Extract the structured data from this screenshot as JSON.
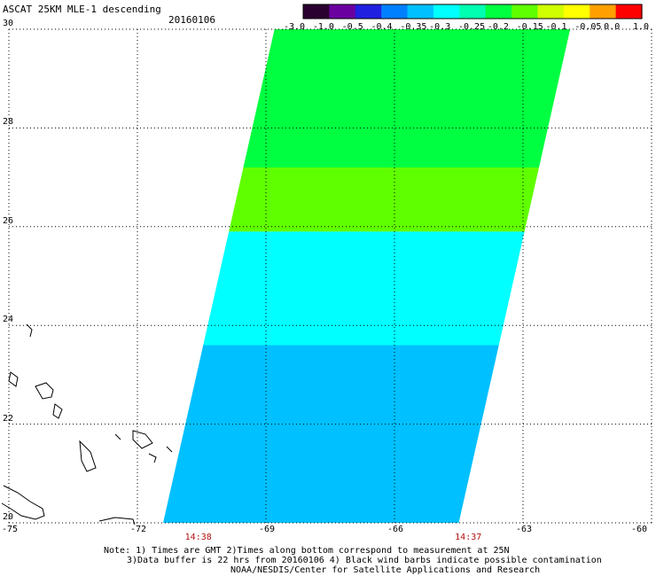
{
  "title": "ASCAT 25KM MLE-1 descending",
  "date": "20160106",
  "colorbar": {
    "ticks": [
      "-3.0",
      "-1.0",
      "-0.5",
      "-0.4",
      "-0.35",
      "-0.3",
      "-0.25",
      "-0.2",
      "-0.15",
      "-0.1",
      "-0.05",
      "0.0",
      "1.0"
    ],
    "colors": [
      "#2a0030",
      "#6a00a0",
      "#2020e0",
      "#0080ff",
      "#00c0ff",
      "#00ffff",
      "#00ffb0",
      "#00ff40",
      "#60ff00",
      "#d0ff00",
      "#ffff00",
      "#ffa000",
      "#ff0000"
    ]
  },
  "axes": {
    "lon_ticks": [
      "-75",
      "-72",
      "-69",
      "-66",
      "-63",
      "-60"
    ],
    "lat_ticks": [
      "20",
      "22",
      "24",
      "26",
      "28",
      "30"
    ],
    "lon_range": [
      -75,
      -60
    ],
    "lat_range": [
      20,
      30
    ],
    "grid": "dotted"
  },
  "times": [
    {
      "label": "14:38",
      "lon": -70.6
    },
    {
      "label": "14:37",
      "lon": -64.3
    }
  ],
  "notes": [
    "Note: 1) Times are GMT 2)Times along bottom correspond to measurement at 25N",
    "3)Data buffer is 22 hrs from 20160106 4) Black wind barbs indicate possible contamination",
    "NOAA/NESDIS/Center for Satellite Applications and Research"
  ],
  "swath": {
    "corners": {
      "top_left_lon": -68.8,
      "top_right_lon": -61.9,
      "bottom_left_lon": -71.4,
      "bottom_right_lon": -64.5
    },
    "bands": [
      {
        "lat_from": 30.0,
        "lat_to": 27.2,
        "value": "-0.2"
      },
      {
        "lat_from": 27.2,
        "lat_to": 25.9,
        "value": "-0.15"
      },
      {
        "lat_from": 25.9,
        "lat_to": 23.6,
        "value": "-0.3"
      },
      {
        "lat_from": 23.6,
        "lat_to": 20.0,
        "value": "-0.35"
      }
    ]
  }
}
